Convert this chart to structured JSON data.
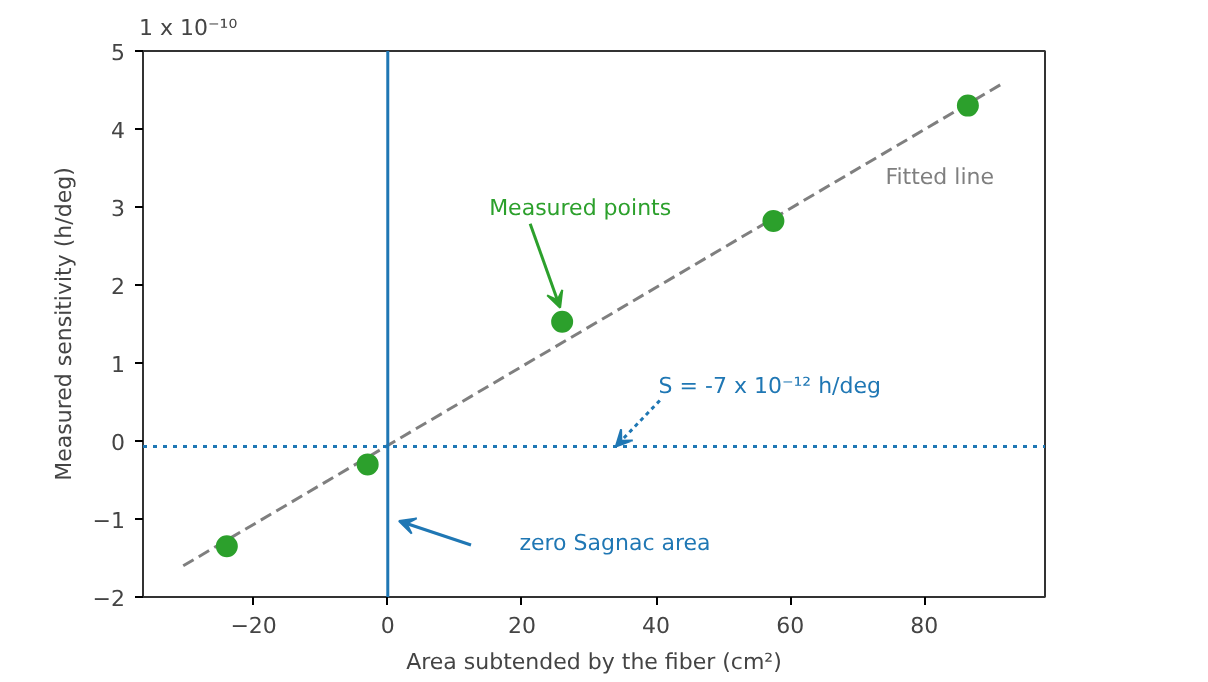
{
  "chart_data": {
    "type": "scatter",
    "xlabel": "Area subtended by the fiber (cm²)",
    "ylabel": "Measured sensitivity (h/deg)",
    "xlim": [
      -36.5,
      98
    ],
    "ylim": [
      -2,
      5
    ],
    "xticks": [
      -20,
      0,
      20,
      40,
      60,
      80
    ],
    "yticks": [
      -2,
      -1,
      0,
      1,
      2,
      3,
      4,
      5
    ],
    "grid": false,
    "marker": "circle",
    "series": [
      {
        "type": "line",
        "color": "#7f7f7f",
        "line_style": "dashed",
        "marker": "none",
        "x": [
          -30.5,
          92
        ],
        "values": [
          -1.6,
          4.6
        ]
      },
      {
        "color": "#2ca02c",
        "x": [
          -24,
          -3,
          26,
          57.5,
          86.5
        ],
        "values": [
          -1.35,
          -0.3,
          1.53,
          2.82,
          4.3
        ]
      }
    ],
    "ref_lines": [
      {
        "axis": "x",
        "value": 0,
        "color": "#1f77b4",
        "line_style": "solid"
      },
      {
        "axis": "y",
        "value": -0.07,
        "color": "#1f77b4",
        "line_style": "dotted"
      }
    ],
    "annotations": [
      "1 x 10⁻¹⁰",
      {
        "text": "Measured points",
        "x": 26,
        "y": 1.53
      },
      {
        "text": "Fitted line",
        "x": 82,
        "y": 4.2
      },
      {
        "text": "S = -7 x 10⁻¹² h/deg",
        "x": 34,
        "y": -0.07
      },
      "zero Sagnac area"
    ]
  }
}
